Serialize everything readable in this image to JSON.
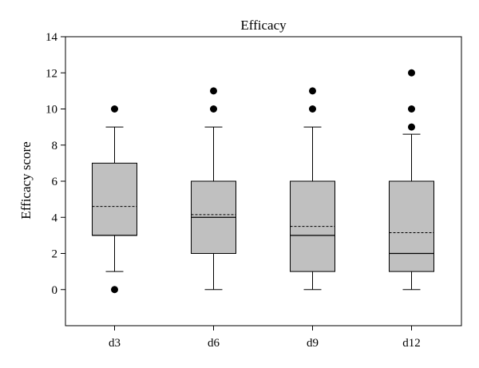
{
  "chart_data": {
    "type": "box",
    "title": "Efficacy",
    "xlabel": "",
    "ylabel": "Efficacy score",
    "ylim": [
      -2,
      14
    ],
    "y_ticks": [
      "0",
      "2",
      "4",
      "6",
      "8",
      "10",
      "12",
      "14"
    ],
    "y_tick_values": [
      0,
      2,
      4,
      6,
      8,
      10,
      12,
      14
    ],
    "grid": false,
    "colors": {
      "box_fill": "#c0c0c0",
      "stroke": "#000000"
    },
    "categories": [
      "d3",
      "d6",
      "d9",
      "d12"
    ],
    "boxes": [
      {
        "category": "d3",
        "whisker_low": 1,
        "q1": 3,
        "median": 3,
        "mean": 4.6,
        "q3": 7,
        "whisker_high": 9,
        "outliers": [
          10,
          0
        ]
      },
      {
        "category": "d6",
        "whisker_low": 0,
        "q1": 2,
        "median": 4,
        "mean": 4.15,
        "q3": 6,
        "whisker_high": 9,
        "outliers": [
          10,
          11
        ]
      },
      {
        "category": "d9",
        "whisker_low": 0,
        "q1": 1,
        "median": 3,
        "mean": 3.5,
        "q3": 6,
        "whisker_high": 9,
        "outliers": [
          10,
          11
        ]
      },
      {
        "category": "d12",
        "whisker_low": 0,
        "q1": 1,
        "median": 2,
        "mean": 3.15,
        "q3": 6,
        "whisker_high": 8.6,
        "outliers": [
          9,
          10,
          12
        ]
      }
    ]
  }
}
